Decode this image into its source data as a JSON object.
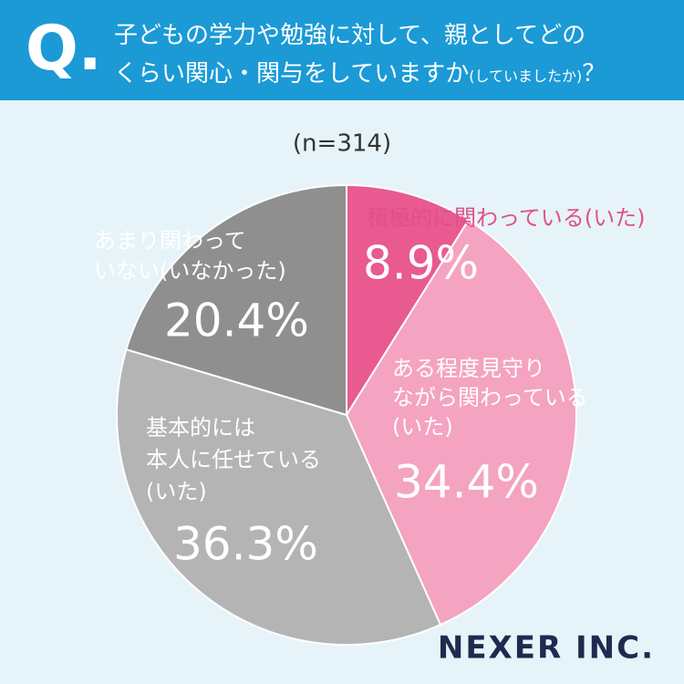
{
  "header": {
    "mark": "Q.",
    "lines": [
      "子どもの学力や勉強に対して、親としてどの",
      "くらい関心・関与をしていますか"
    ],
    "note": "(していましたか)",
    "end": "？"
  },
  "chart_data": {
    "type": "pie",
    "subtitle": "(n=314)",
    "categories": [
      [
        "積極的に関わっている(いた)"
      ],
      [
        "ある程度見守り",
        "ながら関わっている",
        "(いた)"
      ],
      [
        "基本的には",
        "本人に任せている",
        "(いた)"
      ],
      [
        "あまり関わって",
        "いない(いなかった)"
      ]
    ],
    "values": [
      8.9,
      34.4,
      36.3,
      20.4
    ],
    "value_labels": [
      "8.9%",
      "34.4%",
      "36.3%",
      "20.4%"
    ],
    "colors": [
      "#e85a90",
      "#f4a3c1",
      "#b4b4b4",
      "#8f8f8f"
    ]
  },
  "logo": "NEXER INC."
}
